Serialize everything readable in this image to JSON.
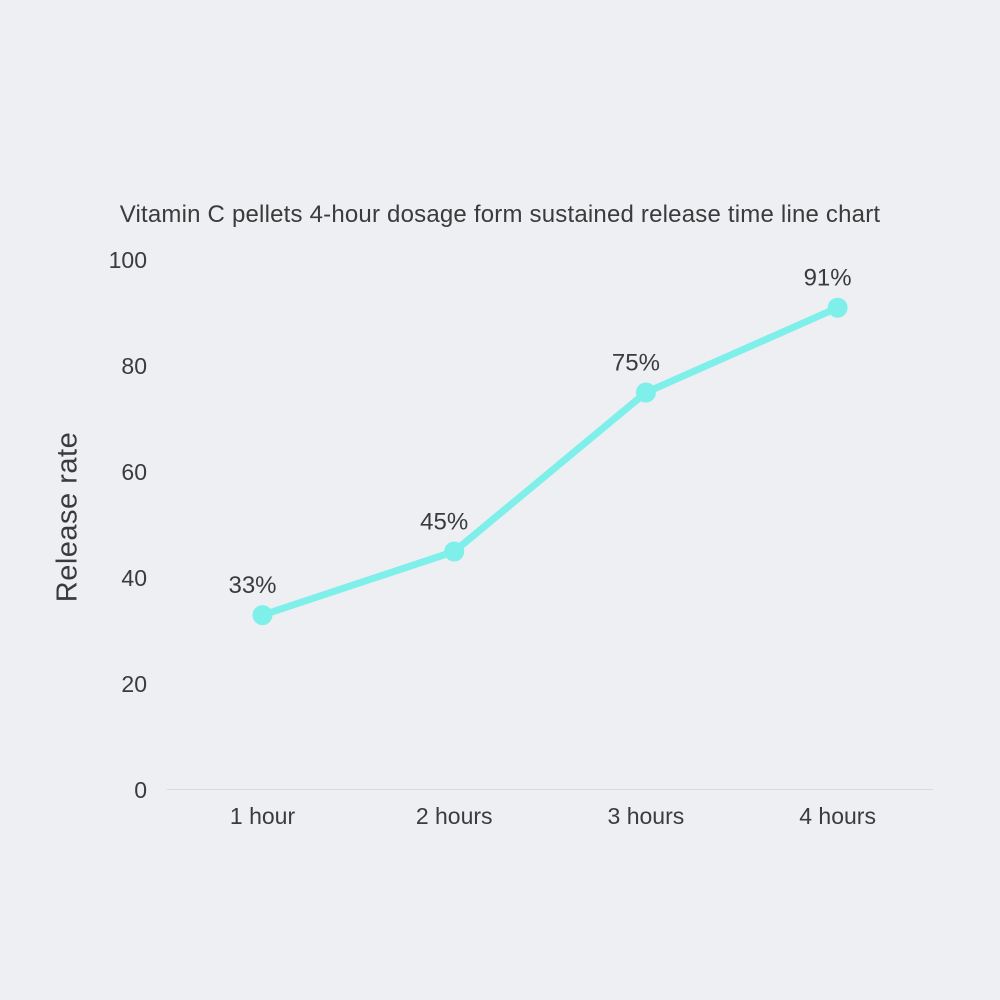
{
  "colors": {
    "background": "#edeff3",
    "text": "#3b3b3b",
    "axis_line": "#d9dbde",
    "accent_line": "#7eefe9"
  },
  "chart_data": {
    "type": "line",
    "title": "Vitamin C pellets 4-hour dosage form sustained release time line chart",
    "ylabel": "Release rate",
    "xlabel": "",
    "categories": [
      "1 hour",
      "2 hours",
      "3 hours",
      "4 hours"
    ],
    "series": [
      {
        "name": "Release rate",
        "values": [
          33,
          45,
          75,
          91
        ],
        "point_labels": [
          "33%",
          "45%",
          "75%",
          "91%"
        ]
      }
    ],
    "yticks": [
      100,
      80,
      60,
      40,
      20,
      0
    ],
    "ylim": [
      0,
      100
    ],
    "grid": false,
    "legend": false,
    "line_color": "#7eefe9",
    "marker": "circle"
  }
}
